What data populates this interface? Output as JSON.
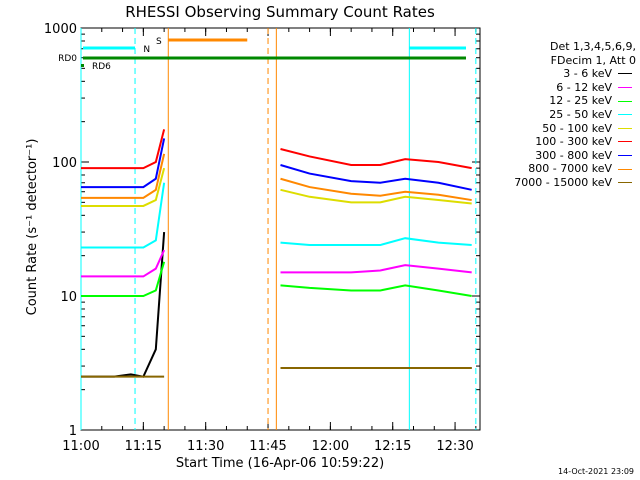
{
  "chart_data": {
    "type": "line",
    "title": "RHESSI Observing Summary Count Rates",
    "xlabel": "Start Time (16-Apr-06 10:59:22)",
    "ylabel": "Count Rate (s⁻¹ detector⁻¹)",
    "yscale": "log",
    "ylim": [
      1,
      1000
    ],
    "xlim": [
      "11:00",
      "12:36"
    ],
    "x_ticks": [
      "11:00",
      "11:15",
      "11:30",
      "11:45",
      "12:00",
      "12:15",
      "12:30"
    ],
    "y_ticks": [
      "1",
      "10",
      "100",
      "1000"
    ],
    "legend_placement": "right",
    "legend_header": [
      "Det 1,3,4,5,6,9,",
      "FDecim 1, Att 0"
    ],
    "series": [
      {
        "name": "3 - 6 keV",
        "color": "#000000",
        "before_gap": [
          2.5,
          2.5,
          2.5,
          2.6,
          2.5,
          4,
          30
        ],
        "after_gap": [
          2.9,
          2.9,
          2.9,
          2.9,
          2.9,
          2.9,
          2.9
        ]
      },
      {
        "name": "6 - 12 keV",
        "color": "#ff00ff",
        "before_gap": [
          14,
          14,
          14,
          14,
          14,
          16,
          22
        ],
        "after_gap": [
          15,
          15,
          15,
          15.5,
          17,
          16,
          15
        ]
      },
      {
        "name": "12 - 25 keV",
        "color": "#00ff00",
        "before_gap": [
          10,
          10,
          10,
          10,
          10,
          11,
          18
        ],
        "after_gap": [
          12,
          11.5,
          11,
          11,
          12,
          11,
          10
        ]
      },
      {
        "name": "25 - 50 keV",
        "color": "#00ffff",
        "before_gap": [
          23,
          23,
          23,
          23,
          23,
          26,
          70
        ],
        "after_gap": [
          25,
          24,
          24,
          24,
          27,
          25,
          24
        ]
      },
      {
        "name": "50 - 100 keV",
        "color": "#dddd00",
        "before_gap": [
          47,
          47,
          47,
          47,
          47,
          52,
          90
        ],
        "after_gap": [
          62,
          55,
          50,
          50,
          55,
          52,
          49
        ]
      },
      {
        "name": "100 - 300 keV",
        "color": "#ff0000",
        "before_gap": [
          90,
          90,
          90,
          90,
          90,
          100,
          175
        ],
        "after_gap": [
          125,
          110,
          95,
          95,
          105,
          100,
          90
        ]
      },
      {
        "name": "300 - 800 keV",
        "color": "#0000ff",
        "before_gap": [
          65,
          65,
          65,
          65,
          65,
          75,
          150
        ],
        "after_gap": [
          95,
          82,
          72,
          70,
          75,
          70,
          62
        ]
      },
      {
        "name": "800 - 7000 keV",
        "color": "#ff8800",
        "before_gap": [
          54,
          54,
          54,
          54,
          54,
          62,
          115
        ],
        "after_gap": [
          75,
          65,
          58,
          56,
          60,
          57,
          52
        ]
      },
      {
        "name": "7000 - 15000 keV",
        "color": "#886600",
        "before_gap": [
          2.5,
          2.5,
          2.5,
          2.5,
          2.5,
          2.5,
          2.5
        ],
        "after_gap": [
          2.9,
          2.9,
          2.9,
          2.9,
          2.9,
          2.9,
          2.9
        ]
      }
    ],
    "time_samples_before_gap": [
      "11:00",
      "11:04",
      "11:08",
      "11:12",
      "11:15",
      "11:18",
      "11:20"
    ],
    "time_samples_after_gap": [
      "11:48",
      "11:55",
      "12:05",
      "12:12",
      "12:18",
      "12:26",
      "12:34"
    ],
    "gap": [
      "11:20",
      "11:48"
    ],
    "markers": [
      {
        "name": "RD0",
        "color": "#008800"
      },
      {
        "name": "RD6",
        "color": "#008800"
      },
      {
        "name": "S",
        "color": "#ff8800"
      },
      {
        "name": "N",
        "color": "#00cccc"
      }
    ],
    "colors": {
      "night": "#00ffff",
      "saa": "#ff8800",
      "rd0": "#008800",
      "rd6": "#008800"
    }
  },
  "footer": {
    "timestamp": "14-Oct-2021 23:09"
  }
}
